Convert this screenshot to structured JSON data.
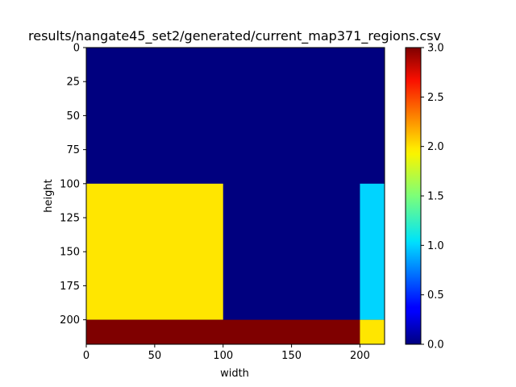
{
  "chart_data": {
    "type": "heatmap",
    "title": "results/nangate45_set2/generated/current_map371_regions.csv",
    "xlabel": "width",
    "ylabel": "height",
    "xlim": [
      0,
      218
    ],
    "ylim": [
      218,
      0
    ],
    "x_ticks": [
      0,
      50,
      100,
      150,
      200
    ],
    "y_ticks": [
      0,
      25,
      50,
      75,
      100,
      125,
      150,
      175,
      200
    ],
    "colormap": "jet",
    "colorbar": {
      "range": [
        0,
        3
      ],
      "ticks": [
        "0.0",
        "0.5",
        "1.0",
        "1.5",
        "2.0",
        "2.5",
        "3.0"
      ]
    },
    "regions": [
      {
        "name": "background",
        "x": [
          0,
          218
        ],
        "y": [
          0,
          218
        ],
        "value": 0,
        "color": "#00007f"
      },
      {
        "name": "region-yellow-left",
        "x": [
          0,
          100
        ],
        "y": [
          100,
          200
        ],
        "value": 2,
        "color": "#ffe600"
      },
      {
        "name": "region-cyan-right",
        "x": [
          200,
          218
        ],
        "y": [
          100,
          200
        ],
        "value": 1,
        "color": "#00d4ff"
      },
      {
        "name": "region-red-bottom",
        "x": [
          0,
          200
        ],
        "y": [
          200,
          218
        ],
        "value": 3,
        "color": "#7f0000"
      },
      {
        "name": "region-yellow-corner",
        "x": [
          200,
          218
        ],
        "y": [
          200,
          218
        ],
        "value": 2,
        "color": "#ffe600"
      }
    ]
  }
}
